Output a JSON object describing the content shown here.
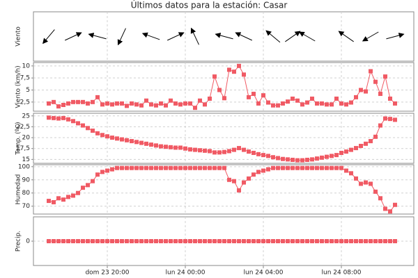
{
  "chart_data": {
    "type": "panels",
    "title": "Últimos datos para la estación: Casar",
    "categories": [
      null,
      null,
      null,
      null,
      null,
      null,
      null,
      null,
      null,
      null,
      null,
      null,
      "dom 23 20:00",
      null,
      null,
      null,
      null,
      null,
      null,
      null,
      null,
      null,
      null,
      null,
      null,
      null,
      null,
      null,
      "lun 24 00:00",
      null,
      null,
      null,
      null,
      null,
      null,
      null,
      null,
      null,
      null,
      null,
      null,
      null,
      null,
      null,
      "lun 24 04:00",
      null,
      null,
      null,
      null,
      null,
      null,
      null,
      null,
      null,
      null,
      null,
      null,
      null,
      null,
      null,
      "lun 24 08:00",
      null,
      null,
      null,
      null,
      null,
      null,
      null,
      null,
      null,
      null,
      null
    ],
    "panels": [
      {
        "type": "arrows",
        "ylabel": "Viento",
        "color": "#000000",
        "values": [
          220,
          null,
          null,
          null,
          null,
          65,
          null,
          null,
          null,
          null,
          285,
          null,
          null,
          null,
          null,
          205,
          null,
          null,
          null,
          null,
          null,
          290,
          null,
          null,
          null,
          null,
          65,
          null,
          null,
          null,
          335,
          null,
          null,
          null,
          null,
          null,
          285,
          null,
          null,
          null,
          295,
          null,
          null,
          null,
          null,
          null,
          310,
          null,
          null,
          null,
          55,
          null,
          null,
          300,
          null,
          null,
          null,
          null,
          null,
          null,
          null,
          305,
          null,
          null,
          null,
          null,
          240,
          null,
          null,
          null,
          null,
          75
        ]
      },
      {
        "type": "line",
        "ylabel": "Viento (km/h)",
        "color": "#f05a64",
        "grid": true,
        "ylim": [
          0.6,
          10.7
        ],
        "yticks": [
          {
            "value": 2.5,
            "label": "2,5"
          },
          5,
          {
            "value": 7.5,
            "label": "7,5"
          },
          10
        ],
        "values": [
          2.2,
          2.5,
          1.6,
          1.9,
          2.2,
          2.5,
          2.5,
          2.5,
          2.2,
          2.5,
          3.5,
          2.0,
          2.2,
          2.0,
          2.2,
          2.2,
          1.7,
          2.2,
          2.0,
          1.8,
          2.8,
          2.0,
          1.8,
          2.2,
          1.8,
          2.8,
          2.2,
          2.0,
          2.2,
          2.2,
          1.3,
          2.8,
          2.0,
          3.2,
          7.8,
          5.0,
          3.3,
          9.2,
          8.8,
          10.0,
          8.2,
          3.5,
          4.2,
          2.2,
          3.9,
          2.4,
          1.8,
          1.8,
          2.2,
          2.6,
          3.2,
          2.8,
          2.0,
          2.4,
          3.2,
          2.2,
          2.2,
          2.0,
          2.0,
          3.2,
          2.2,
          2.0,
          2.4,
          3.5,
          5.0,
          4.7,
          8.9,
          6.7,
          4.2,
          7.8,
          3.2,
          2.2
        ]
      },
      {
        "type": "line",
        "ylabel": "Temp. (ºC)",
        "color": "#f05a64",
        "grid": true,
        "ylim": [
          14.1,
          25.6
        ],
        "yticks": [
          15,
          {
            "value": 17.5,
            "label": "17,5"
          },
          20,
          {
            "value": 22.5,
            "label": "22,5"
          },
          25
        ],
        "values": [
          24.6,
          24.5,
          24.4,
          24.5,
          24.2,
          23.8,
          23.3,
          22.8,
          22.2,
          21.6,
          21.0,
          20.6,
          20.3,
          20.0,
          19.8,
          19.6,
          19.4,
          19.2,
          19.0,
          18.8,
          18.6,
          18.4,
          18.2,
          18.0,
          17.9,
          17.8,
          17.7,
          17.7,
          17.5,
          17.3,
          17.2,
          17.1,
          17.0,
          16.9,
          16.6,
          16.6,
          16.7,
          16.9,
          17.2,
          17.6,
          17.2,
          16.8,
          16.5,
          16.2,
          16.0,
          15.8,
          15.5,
          15.3,
          15.1,
          15.0,
          14.9,
          14.8,
          14.8,
          14.9,
          15.0,
          15.2,
          15.4,
          15.6,
          15.8,
          16.0,
          16.5,
          16.8,
          17.2,
          17.6,
          18.1,
          18.6,
          19.2,
          20.2,
          22.8,
          24.4,
          24.3,
          24.1
        ]
      },
      {
        "type": "line",
        "ylabel": "Humedad",
        "color": "#f05a64",
        "grid": true,
        "ylim": [
          64,
          101.5
        ],
        "yticks": [
          70,
          80,
          90,
          100
        ],
        "values": [
          74,
          73,
          76,
          75,
          77,
          78,
          80,
          84,
          86,
          89,
          94,
          96,
          97,
          98,
          99,
          99,
          99,
          99,
          99,
          99,
          99,
          99,
          99,
          99,
          99,
          99,
          99,
          99,
          99,
          99,
          99,
          99,
          99,
          99,
          99,
          99,
          99,
          90,
          89,
          82,
          88,
          91,
          94,
          96,
          97,
          98,
          99,
          99,
          99,
          99,
          99,
          99,
          99,
          99,
          99,
          99,
          99,
          99,
          99,
          99,
          99,
          97,
          95,
          91,
          87,
          88,
          87,
          81,
          76,
          68,
          66,
          71
        ]
      },
      {
        "type": "line",
        "ylabel": "Precip.",
        "color": "#f05a64",
        "grid": true,
        "ylim": [
          -1,
          1
        ],
        "yticks": [
          0
        ],
        "values": [
          0,
          0,
          0,
          0,
          0,
          0,
          0,
          0,
          0,
          0,
          0,
          0,
          0,
          0,
          0,
          0,
          0,
          0,
          0,
          0,
          0,
          0,
          0,
          0,
          0,
          0,
          0,
          0,
          0,
          0,
          0,
          0,
          0,
          0,
          0,
          0,
          0,
          0,
          0,
          0,
          0,
          0,
          0,
          0,
          0,
          0,
          0,
          0,
          0,
          0,
          0,
          0,
          0,
          0,
          0,
          0,
          0,
          0,
          0,
          0,
          0,
          0,
          0,
          0,
          0,
          0,
          0,
          0,
          0,
          0,
          0,
          0
        ]
      }
    ]
  }
}
